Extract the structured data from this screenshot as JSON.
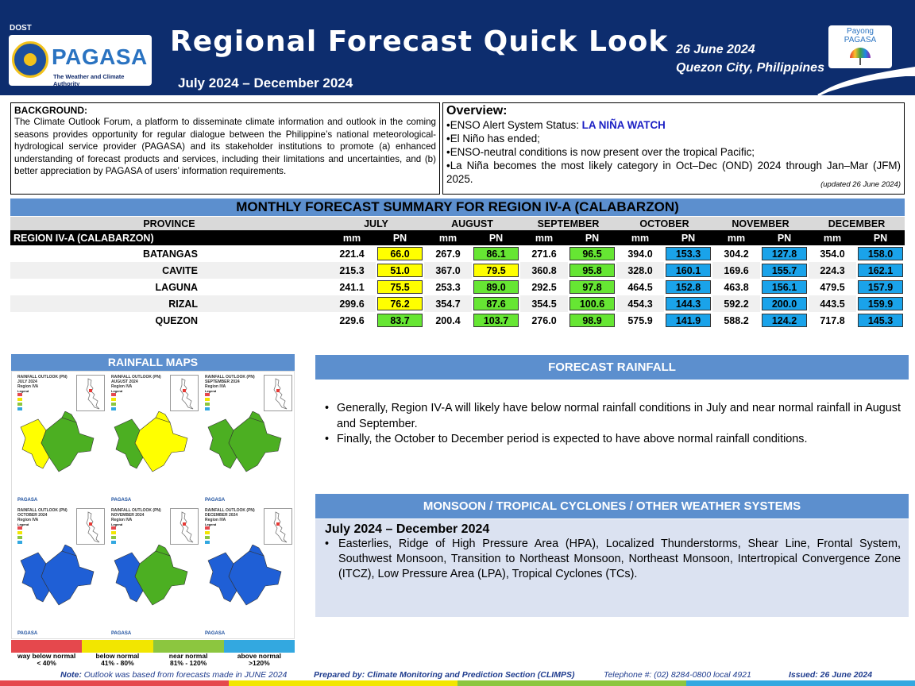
{
  "header": {
    "org_badge": "DOST",
    "org_name": "PAGASA",
    "org_subtitle": "The Weather and Climate Authority",
    "title": "Regional Forecast Quick Look",
    "period": "July 2024 – December 2024",
    "issue_date": "26 June 2024",
    "location": "Quezon City, Philippines",
    "partner_line1": "Payong",
    "partner_line2": "PAGASA"
  },
  "background": {
    "title": "BACKGROUND:",
    "text": "The Climate Outlook Forum, a platform to disseminate climate information and outlook in the coming seasons provides opportunity for regular dialogue between the Philippine’s national meteorological-hydrological service provider (PAGASA) and its stakeholder institutions to promote (a) enhanced understanding of forecast products and services, including their limitations and uncertainties, and (b) better appreciation by PAGASA of users’ information requirements."
  },
  "overview": {
    "title": "Overview:",
    "enso_label": "ENSO Alert System Status: ",
    "enso_status": "LA NIÑA WATCH",
    "item2": "El Niño has ended;",
    "item3": "ENSO-neutral conditions is now present over the tropical Pacific;",
    "item4": "La Niña becomes the most likely category in Oct–Dec (OND) 2024 through Jan–Mar (JFM) 2025.",
    "updated": "(updated 26 June 2024)"
  },
  "summary": {
    "title": "MONTHLY FORECAST SUMMARY FOR REGION IV-A  (CALABARZON)",
    "province_header": "PROVINCE",
    "region_label": "REGION IV-A  (CALABARZON)",
    "unit_mm": "mm",
    "unit_pn": "PN",
    "months": [
      "JULY",
      "AUGUST",
      "SEPTEMBER",
      "OCTOBER",
      "NOVEMBER",
      "DECEMBER"
    ],
    "category_colors": {
      "below": "#ffff00",
      "near": "#66e633",
      "above": "#1aa3ea"
    },
    "rows": [
      {
        "province": "BATANGAS",
        "values": [
          [
            "221.4",
            "66.0"
          ],
          [
            "267.9",
            "86.1"
          ],
          [
            "271.6",
            "96.5"
          ],
          [
            "394.0",
            "153.3"
          ],
          [
            "304.2",
            "127.8"
          ],
          [
            "354.0",
            "158.0"
          ]
        ],
        "categories": [
          "below",
          "near",
          "near",
          "above",
          "above",
          "above"
        ]
      },
      {
        "province": "CAVITE",
        "values": [
          [
            "215.3",
            "51.0"
          ],
          [
            "367.0",
            "79.5"
          ],
          [
            "360.8",
            "95.8"
          ],
          [
            "328.0",
            "160.1"
          ],
          [
            "169.6",
            "155.7"
          ],
          [
            "224.3",
            "162.1"
          ]
        ],
        "categories": [
          "below",
          "below",
          "near",
          "above",
          "above",
          "above"
        ]
      },
      {
        "province": "LAGUNA",
        "values": [
          [
            "241.1",
            "75.5"
          ],
          [
            "253.3",
            "89.0"
          ],
          [
            "292.5",
            "97.8"
          ],
          [
            "464.5",
            "152.8"
          ],
          [
            "463.8",
            "156.1"
          ],
          [
            "479.5",
            "157.9"
          ]
        ],
        "categories": [
          "below",
          "near",
          "near",
          "above",
          "above",
          "above"
        ]
      },
      {
        "province": "RIZAL",
        "values": [
          [
            "299.6",
            "76.2"
          ],
          [
            "354.7",
            "87.6"
          ],
          [
            "354.5",
            "100.6"
          ],
          [
            "454.3",
            "144.3"
          ],
          [
            "592.2",
            "200.0"
          ],
          [
            "443.5",
            "159.9"
          ]
        ],
        "categories": [
          "below",
          "near",
          "near",
          "above",
          "above",
          "above"
        ]
      },
      {
        "province": "QUEZON",
        "values": [
          [
            "229.6",
            "83.7"
          ],
          [
            "200.4",
            "103.7"
          ],
          [
            "276.0",
            "98.9"
          ],
          [
            "575.9",
            "141.9"
          ],
          [
            "588.2",
            "124.2"
          ],
          [
            "717.8",
            "145.3"
          ]
        ],
        "categories": [
          "near",
          "near",
          "near",
          "above",
          "above",
          "above"
        ]
      }
    ]
  },
  "maps": {
    "title": "RAINFALL MAPS",
    "panels": [
      {
        "title": "RAINFALL OUTLOOK (PN)",
        "month": "JULY 2024",
        "region": "Region IVA",
        "legend_label": "Legend",
        "fill": "#ffff00",
        "fill2": "#4caf22"
      },
      {
        "title": "RAINFALL OUTLOOK (PN)",
        "month": "AUGUST 2024",
        "region": "Region IVA",
        "legend_label": "Legend",
        "fill": "#4caf22",
        "fill2": "#ffff00"
      },
      {
        "title": "RAINFALL OUTLOOK (PN)",
        "month": "SEPTEMBER 2024",
        "region": "Region IVA",
        "legend_label": "Legend",
        "fill": "#4caf22",
        "fill2": "#4caf22"
      },
      {
        "title": "RAINFALL OUTLOOK (PN)",
        "month": "OCTOBER 2024",
        "region": "Region IVA",
        "legend_label": "Legend",
        "fill": "#1f5fd6",
        "fill2": "#1f5fd6"
      },
      {
        "title": "RAINFALL OUTLOOK (PN)",
        "month": "NOVEMBER 2024",
        "region": "Region IVA",
        "legend_label": "Legend",
        "fill": "#1f5fd6",
        "fill2": "#4caf22"
      },
      {
        "title": "RAINFALL OUTLOOK (PN)",
        "month": "DECEMBER 2024",
        "region": "Region IVA",
        "legend_label": "Legend",
        "fill": "#1f5fd6",
        "fill2": "#1f5fd6"
      }
    ],
    "map_footer": "PAGASA",
    "legend": [
      {
        "label": "way below normal",
        "range": "< 40%",
        "color": "#e5484d"
      },
      {
        "label": "below normal",
        "range": "41%  -  80%",
        "color": "#f2e600"
      },
      {
        "label": "near normal",
        "range": "81% - 120%",
        "color": "#8cc63f"
      },
      {
        "label": "above normal",
        "range": ">120%",
        "color": "#33a8e0"
      }
    ]
  },
  "forecast_rainfall": {
    "title": "FORECAST RAINFALL",
    "bullet1": "Generally, Region IV-A will likely have below normal rainfall conditions in July and near normal rainfall in August and September.",
    "bullet2": "Finally, the October to December period is expected to have above normal rainfall conditions."
  },
  "monsoon": {
    "title": "MONSOON  /  TROPICAL CYCLONES / OTHER WEATHER SYSTEMS",
    "period": "July 2024 – December 2024",
    "bullet": "Easterlies, Ridge of High Pressure Area (HPA), Localized Thunderstorms, Shear Line, Frontal System, Southwest Monsoon, Transition to Northeast Monsoon, Northeast Monsoon, Intertropical Convergence Zone (ITCZ), Low Pressure Area (LPA), Tropical Cyclones (TCs)."
  },
  "footer": {
    "note_label": "Note:",
    "note": " Outlook was based from forecasts made in JUNE 2024",
    "prepared": "Prepared by: Climate Monitoring and Prediction Section (CLIMPS)",
    "telephone": "Telephone #: (02) 8284-0800 local 4921",
    "issued": "Issued: 26 June 2024"
  },
  "colors": {
    "header_navy": "#0d2d6e",
    "section_blue": "#5c8fce",
    "enso_blue": "#1c20c4"
  }
}
